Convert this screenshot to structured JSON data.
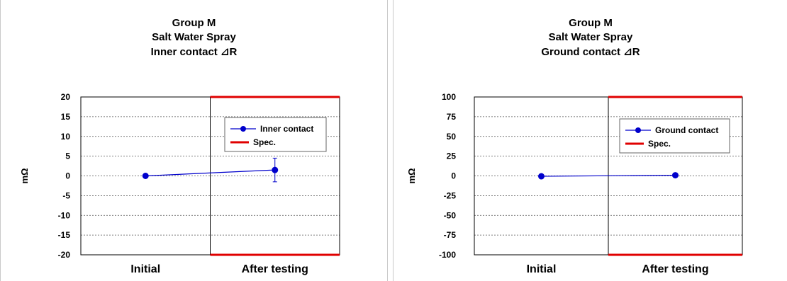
{
  "chart_data": [
    {
      "type": "line",
      "title": [
        "Group M",
        "Salt Water Spray",
        "Inner contact ⊿R"
      ],
      "ylabel": "mΩ",
      "categories": [
        "Initial",
        "After testing"
      ],
      "ylim": [
        -20,
        20
      ],
      "yticks": [
        20,
        15,
        10,
        5,
        0,
        -5,
        -10,
        -15,
        -20
      ],
      "grid": "dashed horizontal",
      "legend_position": "top-right",
      "series": [
        {
          "name": "Inner contact",
          "values": [
            0,
            1.5
          ],
          "error": [
            0,
            3.0
          ],
          "color": "#0000cc"
        }
      ],
      "spec": {
        "name": "Spec.",
        "upper": 20,
        "lower": -20,
        "applies_to": "After testing",
        "color": "#e00000"
      }
    },
    {
      "type": "line",
      "title": [
        "Group M",
        "Salt Water Spray",
        "Ground contact ⊿R"
      ],
      "ylabel": "mΩ",
      "categories": [
        "Initial",
        "After testing"
      ],
      "ylim": [
        -100,
        100
      ],
      "yticks": [
        100,
        75,
        50,
        25,
        0,
        -25,
        -50,
        -75,
        -100
      ],
      "grid": "dashed horizontal",
      "legend_position": "top-right",
      "series": [
        {
          "name": "Ground contact",
          "values": [
            -0.5,
            0.8
          ],
          "color": "#0000cc"
        }
      ],
      "spec": {
        "name": "Spec.",
        "upper": 100,
        "lower": -100,
        "applies_to": "After testing",
        "color": "#e00000"
      }
    }
  ]
}
